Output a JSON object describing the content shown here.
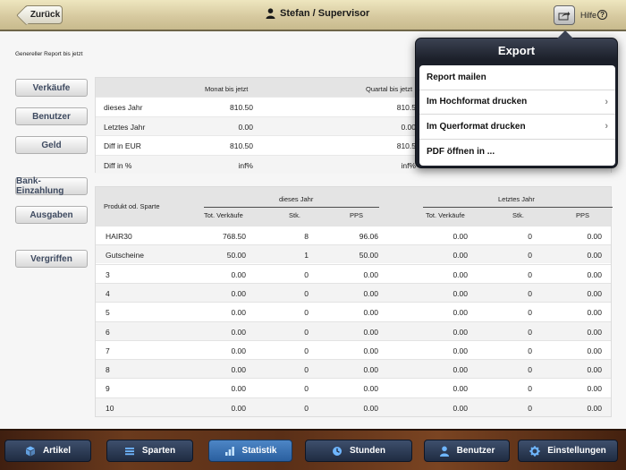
{
  "header": {
    "back_label": "Zurück",
    "title": "Stefan / Supervisor",
    "help_label": "Hilfe",
    "help_symbol": "?"
  },
  "report_title": "Genereller Report bis jetzt",
  "side_buttons": [
    "Verkäufe",
    "Benutzer",
    "Geld",
    "Bank-Einzahlung",
    "Ausgaben",
    "Vergriffen"
  ],
  "summary": {
    "columns": [
      "Monat bis jetzt",
      "Quartal bis jetzt"
    ],
    "rows": [
      {
        "label": "dieses Jahr",
        "monat": "810.50",
        "quartal": "810.5"
      },
      {
        "label": "Letztes Jahr",
        "monat": "0.00",
        "quartal": "0.00"
      },
      {
        "label": "Diff in EUR",
        "monat": "810.50",
        "quartal": "810.5"
      },
      {
        "label": "Diff in %",
        "monat": "inf%",
        "quartal": "inf%"
      }
    ]
  },
  "detail": {
    "product_header": "Produkt od. Sparte",
    "group_this_year": "dieses Jahr",
    "group_last_year": "Letztes Jahr",
    "sub_columns": [
      "Tot. Verkäufe",
      "Stk.",
      "PPS",
      "Tot. Verkäufe",
      "Stk.",
      "PPS"
    ],
    "rows": [
      [
        "HAIR30",
        "768.50",
        "8",
        "96.06",
        "0.00",
        "0",
        "0.00"
      ],
      [
        "Gutscheine",
        "50.00",
        "1",
        "50.00",
        "0.00",
        "0",
        "0.00"
      ],
      [
        "3",
        "0.00",
        "0",
        "0.00",
        "0.00",
        "0",
        "0.00"
      ],
      [
        "4",
        "0.00",
        "0",
        "0.00",
        "0.00",
        "0",
        "0.00"
      ],
      [
        "5",
        "0.00",
        "0",
        "0.00",
        "0.00",
        "0",
        "0.00"
      ],
      [
        "6",
        "0.00",
        "0",
        "0.00",
        "0.00",
        "0",
        "0.00"
      ],
      [
        "7",
        "0.00",
        "0",
        "0.00",
        "0.00",
        "0",
        "0.00"
      ],
      [
        "8",
        "0.00",
        "0",
        "0.00",
        "0.00",
        "0",
        "0.00"
      ],
      [
        "9",
        "0.00",
        "0",
        "0.00",
        "0.00",
        "0",
        "0.00"
      ],
      [
        "10",
        "0.00",
        "0",
        "0.00",
        "0.00",
        "0",
        "0.00"
      ]
    ]
  },
  "export_popover": {
    "title": "Export",
    "items": [
      {
        "label": "Report mailen",
        "has_chevron": false
      },
      {
        "label": "Im Hochformat drucken",
        "has_chevron": true
      },
      {
        "label": "Im Querformat drucken",
        "has_chevron": true
      },
      {
        "label": "PDF öffnen in ...",
        "has_chevron": false
      }
    ]
  },
  "tabs": [
    {
      "label": "Artikel",
      "icon": "cube-icon",
      "active": false
    },
    {
      "label": "Sparten",
      "icon": "list-icon",
      "active": false
    },
    {
      "label": "Statistik",
      "icon": "bar-chart-icon",
      "active": true
    },
    {
      "label": "Stunden",
      "icon": "clock-icon",
      "active": false
    },
    {
      "label": "Benutzer",
      "icon": "user-icon",
      "active": false
    },
    {
      "label": "Einstellungen",
      "icon": "gear-icon",
      "active": false
    }
  ],
  "colors": {
    "header_bg": "#d7caa0",
    "tab_active": "#2a5f9f",
    "tab_inactive": "#1f2c42",
    "popover_dark": "#1b1f29"
  }
}
